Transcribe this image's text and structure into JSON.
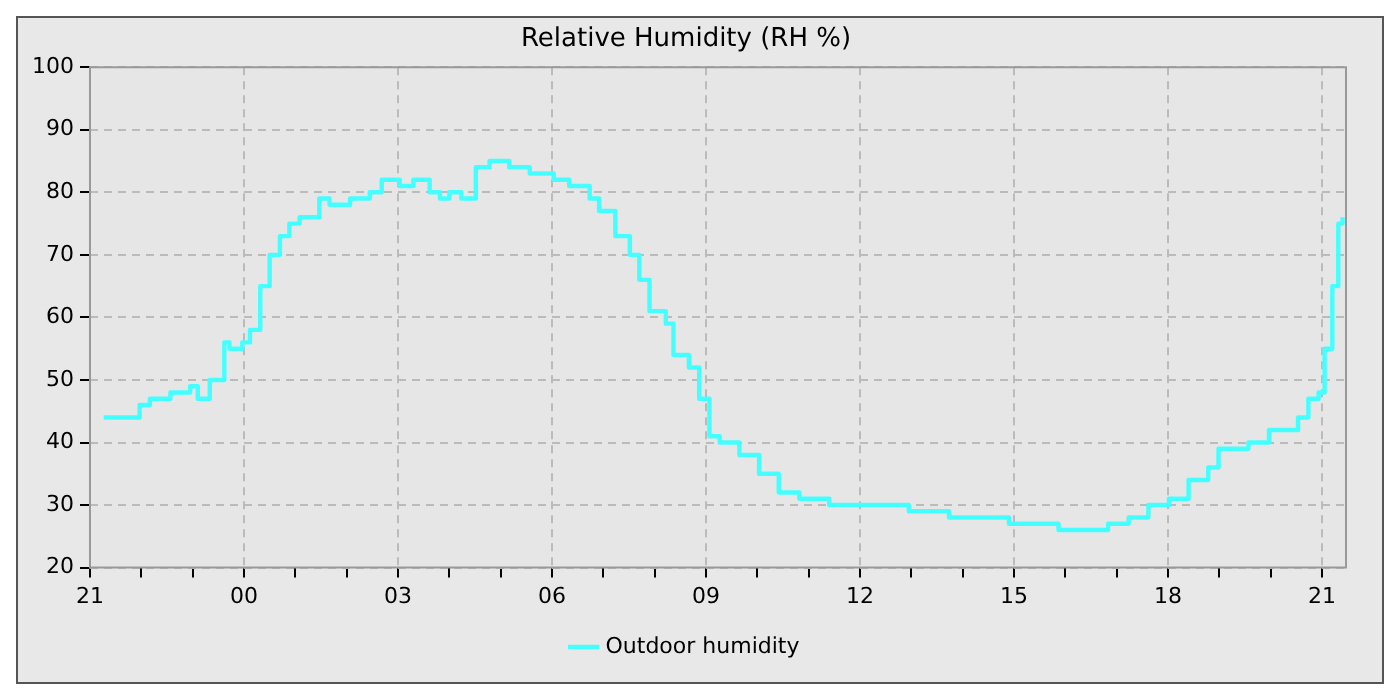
{
  "chart_data": {
    "type": "step",
    "title": "Relative Humidity (RH %)",
    "x": [
      "--01-01T21:16",
      "--01-01T21:47",
      "--01-01T21:58",
      "--01-01T22:10",
      "--01-01T22:34",
      "--01-01T22:57",
      "--01-01T23:06",
      "--01-01T23:20",
      "--01-01T23:37",
      "--01-01T23:43",
      "--01-01T23:58",
      "--01-02T00:07",
      "--01-02T00:19",
      "--01-02T00:30",
      "--01-02T00:42",
      "--01-02T00:53",
      "--01-02T01:05",
      "--01-02T01:28",
      "--01-02T01:40",
      "--01-02T02:04",
      "--01-02T02:27",
      "--01-02T02:41",
      "--01-02T03:02",
      "--01-02T03:18",
      "--01-02T03:37",
      "--01-02T03:49",
      "--01-02T04:00",
      "--01-02T04:14",
      "--01-02T04:31",
      "--01-02T04:47",
      "--01-02T05:10",
      "--01-02T05:34",
      "--01-02T06:02",
      "--01-02T06:20",
      "--01-02T06:44",
      "--01-02T06:55",
      "--01-02T07:14",
      "--01-02T07:31",
      "--01-02T07:42",
      "--01-02T07:54",
      "--01-02T08:13",
      "--01-02T08:22",
      "--01-02T08:40",
      "--01-02T08:52",
      "--01-02T09:04",
      "--01-02T09:16",
      "--01-02T09:39",
      "--01-02T10:02",
      "--01-02T10:25",
      "--01-02T10:49",
      "--01-02T11:24",
      "--01-02T12:11",
      "--01-02T12:57",
      "--01-02T13:44",
      "--01-02T14:31",
      "--01-02T14:54",
      "--01-02T15:17",
      "--01-02T15:52",
      "--01-02T16:16",
      "--01-02T16:50",
      "--01-02T17:14",
      "--01-02T17:37",
      "--01-02T18:01",
      "--01-02T18:24",
      "--01-02T18:47",
      "--01-02T18:59",
      "--01-02T19:34",
      "--01-02T19:58",
      "--01-02T20:32",
      "--01-02T20:44",
      "--01-02T20:56",
      "--01-02T21:03",
      "--01-02T21:12",
      "--01-02T21:19",
      "--01-02T21:24"
    ],
    "series": [
      {
        "name": "Outdoor humidity",
        "color": "#44ffff",
        "values": [
          44,
          44,
          46,
          47,
          48,
          49,
          47,
          50,
          56,
          55,
          56,
          58,
          65,
          70,
          73,
          75,
          76,
          79,
          78,
          79,
          80,
          82,
          81,
          82,
          80,
          79,
          80,
          79,
          84,
          85,
          84,
          83,
          82,
          81,
          79,
          77,
          73,
          70,
          66,
          61,
          59,
          54,
          52,
          47,
          41,
          40,
          38,
          35,
          32,
          31,
          30,
          30,
          29,
          28,
          28,
          27,
          27,
          26,
          26,
          27,
          28,
          30,
          31,
          34,
          36,
          39,
          40,
          42,
          44,
          47,
          48,
          55,
          65,
          75,
          76
        ]
      }
    ],
    "xlim": [
      "--01-01T21:00",
      "--01-02T21:28"
    ],
    "xticks": [
      {
        "value": "--01-01T21:00",
        "label": "21"
      },
      {
        "value": "--01-01T22:00",
        "label": null
      },
      {
        "value": "--01-01T23:00",
        "label": null
      },
      {
        "value": "--01-02T00:00",
        "label": "00"
      },
      {
        "value": "--01-02T01:00",
        "label": null
      },
      {
        "value": "--01-02T02:00",
        "label": null
      },
      {
        "value": "--01-02T03:00",
        "label": "03"
      },
      {
        "value": "--01-02T04:00",
        "label": null
      },
      {
        "value": "--01-02T05:00",
        "label": null
      },
      {
        "value": "--01-02T06:00",
        "label": "06"
      },
      {
        "value": "--01-02T07:00",
        "label": null
      },
      {
        "value": "--01-02T08:00",
        "label": null
      },
      {
        "value": "--01-02T09:00",
        "label": "09"
      },
      {
        "value": "--01-02T10:00",
        "label": null
      },
      {
        "value": "--01-02T11:00",
        "label": null
      },
      {
        "value": "--01-02T12:00",
        "label": "12"
      },
      {
        "value": "--01-02T13:00",
        "label": null
      },
      {
        "value": "--01-02T14:00",
        "label": null
      },
      {
        "value": "--01-02T15:00",
        "label": "15"
      },
      {
        "value": "--01-02T16:00",
        "label": null
      },
      {
        "value": "--01-02T17:00",
        "label": null
      },
      {
        "value": "--01-02T18:00",
        "label": "18"
      },
      {
        "value": "--01-02T19:00",
        "label": null
      },
      {
        "value": "--01-02T20:00",
        "label": null
      },
      {
        "value": "--01-02T21:00",
        "label": "21"
      }
    ],
    "ylim": [
      20,
      100
    ],
    "yticks": [
      20,
      30,
      40,
      50,
      60,
      70,
      80,
      90,
      100
    ],
    "grid": true,
    "legend": "bottom",
    "line_style": "solid",
    "marker": "none"
  }
}
